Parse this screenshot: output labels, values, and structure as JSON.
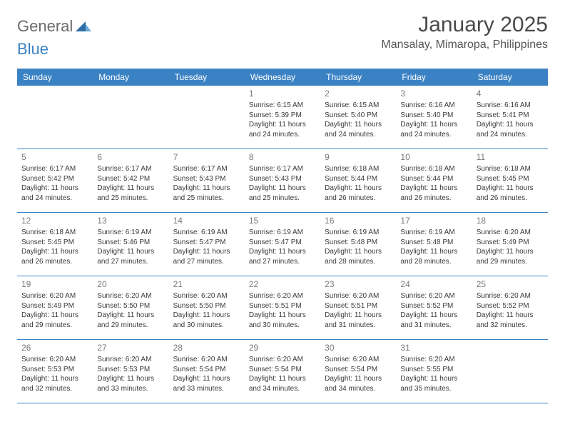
{
  "logo": {
    "general": "General",
    "blue": "Blue"
  },
  "title": "January 2025",
  "location": "Mansalay, Mimaropa, Philippines",
  "colors": {
    "header_bg": "#3b82c4",
    "header_text": "#ffffff",
    "page_bg": "#ffffff",
    "text": "#333333",
    "daynum": "#7a7a7a",
    "logo_general": "#6b6b6b",
    "logo_blue": "#3b82c4",
    "row_divider": "#3b82c4"
  },
  "typography": {
    "title_fontsize": 30,
    "location_fontsize": 16,
    "header_fontsize": 12,
    "daynum_fontsize": 12,
    "cell_fontsize": 10
  },
  "day_names": [
    "Sunday",
    "Monday",
    "Tuesday",
    "Wednesday",
    "Thursday",
    "Friday",
    "Saturday"
  ],
  "weeks": [
    [
      null,
      null,
      null,
      {
        "n": "1",
        "sr": "Sunrise: 6:15 AM",
        "ss": "Sunset: 5:39 PM",
        "d1": "Daylight: 11 hours",
        "d2": "and 24 minutes."
      },
      {
        "n": "2",
        "sr": "Sunrise: 6:15 AM",
        "ss": "Sunset: 5:40 PM",
        "d1": "Daylight: 11 hours",
        "d2": "and 24 minutes."
      },
      {
        "n": "3",
        "sr": "Sunrise: 6:16 AM",
        "ss": "Sunset: 5:40 PM",
        "d1": "Daylight: 11 hours",
        "d2": "and 24 minutes."
      },
      {
        "n": "4",
        "sr": "Sunrise: 6:16 AM",
        "ss": "Sunset: 5:41 PM",
        "d1": "Daylight: 11 hours",
        "d2": "and 24 minutes."
      }
    ],
    [
      {
        "n": "5",
        "sr": "Sunrise: 6:17 AM",
        "ss": "Sunset: 5:42 PM",
        "d1": "Daylight: 11 hours",
        "d2": "and 24 minutes."
      },
      {
        "n": "6",
        "sr": "Sunrise: 6:17 AM",
        "ss": "Sunset: 5:42 PM",
        "d1": "Daylight: 11 hours",
        "d2": "and 25 minutes."
      },
      {
        "n": "7",
        "sr": "Sunrise: 6:17 AM",
        "ss": "Sunset: 5:43 PM",
        "d1": "Daylight: 11 hours",
        "d2": "and 25 minutes."
      },
      {
        "n": "8",
        "sr": "Sunrise: 6:17 AM",
        "ss": "Sunset: 5:43 PM",
        "d1": "Daylight: 11 hours",
        "d2": "and 25 minutes."
      },
      {
        "n": "9",
        "sr": "Sunrise: 6:18 AM",
        "ss": "Sunset: 5:44 PM",
        "d1": "Daylight: 11 hours",
        "d2": "and 26 minutes."
      },
      {
        "n": "10",
        "sr": "Sunrise: 6:18 AM",
        "ss": "Sunset: 5:44 PM",
        "d1": "Daylight: 11 hours",
        "d2": "and 26 minutes."
      },
      {
        "n": "11",
        "sr": "Sunrise: 6:18 AM",
        "ss": "Sunset: 5:45 PM",
        "d1": "Daylight: 11 hours",
        "d2": "and 26 minutes."
      }
    ],
    [
      {
        "n": "12",
        "sr": "Sunrise: 6:18 AM",
        "ss": "Sunset: 5:45 PM",
        "d1": "Daylight: 11 hours",
        "d2": "and 26 minutes."
      },
      {
        "n": "13",
        "sr": "Sunrise: 6:19 AM",
        "ss": "Sunset: 5:46 PM",
        "d1": "Daylight: 11 hours",
        "d2": "and 27 minutes."
      },
      {
        "n": "14",
        "sr": "Sunrise: 6:19 AM",
        "ss": "Sunset: 5:47 PM",
        "d1": "Daylight: 11 hours",
        "d2": "and 27 minutes."
      },
      {
        "n": "15",
        "sr": "Sunrise: 6:19 AM",
        "ss": "Sunset: 5:47 PM",
        "d1": "Daylight: 11 hours",
        "d2": "and 27 minutes."
      },
      {
        "n": "16",
        "sr": "Sunrise: 6:19 AM",
        "ss": "Sunset: 5:48 PM",
        "d1": "Daylight: 11 hours",
        "d2": "and 28 minutes."
      },
      {
        "n": "17",
        "sr": "Sunrise: 6:19 AM",
        "ss": "Sunset: 5:48 PM",
        "d1": "Daylight: 11 hours",
        "d2": "and 28 minutes."
      },
      {
        "n": "18",
        "sr": "Sunrise: 6:20 AM",
        "ss": "Sunset: 5:49 PM",
        "d1": "Daylight: 11 hours",
        "d2": "and 29 minutes."
      }
    ],
    [
      {
        "n": "19",
        "sr": "Sunrise: 6:20 AM",
        "ss": "Sunset: 5:49 PM",
        "d1": "Daylight: 11 hours",
        "d2": "and 29 minutes."
      },
      {
        "n": "20",
        "sr": "Sunrise: 6:20 AM",
        "ss": "Sunset: 5:50 PM",
        "d1": "Daylight: 11 hours",
        "d2": "and 29 minutes."
      },
      {
        "n": "21",
        "sr": "Sunrise: 6:20 AM",
        "ss": "Sunset: 5:50 PM",
        "d1": "Daylight: 11 hours",
        "d2": "and 30 minutes."
      },
      {
        "n": "22",
        "sr": "Sunrise: 6:20 AM",
        "ss": "Sunset: 5:51 PM",
        "d1": "Daylight: 11 hours",
        "d2": "and 30 minutes."
      },
      {
        "n": "23",
        "sr": "Sunrise: 6:20 AM",
        "ss": "Sunset: 5:51 PM",
        "d1": "Daylight: 11 hours",
        "d2": "and 31 minutes."
      },
      {
        "n": "24",
        "sr": "Sunrise: 6:20 AM",
        "ss": "Sunset: 5:52 PM",
        "d1": "Daylight: 11 hours",
        "d2": "and 31 minutes."
      },
      {
        "n": "25",
        "sr": "Sunrise: 6:20 AM",
        "ss": "Sunset: 5:52 PM",
        "d1": "Daylight: 11 hours",
        "d2": "and 32 minutes."
      }
    ],
    [
      {
        "n": "26",
        "sr": "Sunrise: 6:20 AM",
        "ss": "Sunset: 5:53 PM",
        "d1": "Daylight: 11 hours",
        "d2": "and 32 minutes."
      },
      {
        "n": "27",
        "sr": "Sunrise: 6:20 AM",
        "ss": "Sunset: 5:53 PM",
        "d1": "Daylight: 11 hours",
        "d2": "and 33 minutes."
      },
      {
        "n": "28",
        "sr": "Sunrise: 6:20 AM",
        "ss": "Sunset: 5:54 PM",
        "d1": "Daylight: 11 hours",
        "d2": "and 33 minutes."
      },
      {
        "n": "29",
        "sr": "Sunrise: 6:20 AM",
        "ss": "Sunset: 5:54 PM",
        "d1": "Daylight: 11 hours",
        "d2": "and 34 minutes."
      },
      {
        "n": "30",
        "sr": "Sunrise: 6:20 AM",
        "ss": "Sunset: 5:54 PM",
        "d1": "Daylight: 11 hours",
        "d2": "and 34 minutes."
      },
      {
        "n": "31",
        "sr": "Sunrise: 6:20 AM",
        "ss": "Sunset: 5:55 PM",
        "d1": "Daylight: 11 hours",
        "d2": "and 35 minutes."
      },
      null
    ]
  ]
}
